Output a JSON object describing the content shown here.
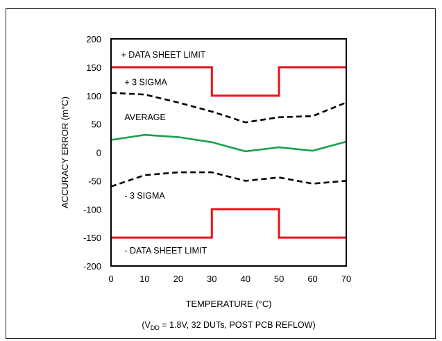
{
  "chart_data": {
    "type": "line",
    "title": "",
    "xlabel": "TEMPERATURE (°C)",
    "ylabel": "ACCURACY ERROR (m°C)",
    "note": {
      "prefix": "(V",
      "subscript": "DD",
      "suffix": " = 1.8V, 32 DUTs, POST PCB REFLOW)"
    },
    "xlim": [
      0,
      70
    ],
    "ylim": [
      -200,
      200
    ],
    "x_ticks": [
      0,
      10,
      20,
      30,
      40,
      50,
      60,
      70
    ],
    "y_ticks": [
      200,
      150,
      100,
      50,
      0,
      -50,
      -100,
      -150,
      -200
    ],
    "grid": false,
    "series": [
      {
        "name": "+ DATA SHEET LIMIT",
        "color": "#e8141b",
        "style": "solid",
        "step": true,
        "points": [
          [
            0,
            150
          ],
          [
            30,
            150
          ],
          [
            30,
            100
          ],
          [
            50,
            100
          ],
          [
            50,
            150
          ],
          [
            70,
            150
          ]
        ]
      },
      {
        "name": "+ 3 SIGMA",
        "color": "#000000",
        "style": "dashed",
        "step": false,
        "points": [
          [
            0,
            105
          ],
          [
            10,
            102
          ],
          [
            20,
            88
          ],
          [
            30,
            72
          ],
          [
            40,
            53
          ],
          [
            50,
            62
          ],
          [
            60,
            64
          ],
          [
            70,
            88
          ]
        ]
      },
      {
        "name": "AVERAGE",
        "color": "#16a44a",
        "style": "solid",
        "step": false,
        "points": [
          [
            0,
            22
          ],
          [
            10,
            31
          ],
          [
            20,
            27
          ],
          [
            30,
            18
          ],
          [
            40,
            2
          ],
          [
            50,
            9
          ],
          [
            60,
            3
          ],
          [
            70,
            19
          ]
        ]
      },
      {
        "name": "- 3 SIGMA",
        "color": "#000000",
        "style": "dashed",
        "step": false,
        "points": [
          [
            0,
            -60
          ],
          [
            10,
            -40
          ],
          [
            20,
            -35
          ],
          [
            30,
            -35
          ],
          [
            40,
            -50
          ],
          [
            50,
            -44
          ],
          [
            60,
            -55
          ],
          [
            70,
            -50
          ]
        ]
      },
      {
        "name": "- DATA SHEET LIMIT",
        "color": "#e8141b",
        "style": "solid",
        "step": true,
        "points": [
          [
            0,
            -150
          ],
          [
            30,
            -150
          ],
          [
            30,
            -100
          ],
          [
            50,
            -100
          ],
          [
            50,
            -150
          ],
          [
            70,
            -150
          ]
        ]
      }
    ],
    "annotations": [
      {
        "text": "+ DATA SHEET LIMIT",
        "x": 3,
        "y": 173
      },
      {
        "text": "+ 3 SIGMA",
        "x": 4,
        "y": 125
      },
      {
        "text": "AVERAGE",
        "x": 4,
        "y": 63
      },
      {
        "text": "- 3 SIGMA",
        "x": 4,
        "y": -75
      },
      {
        "text": "- DATA SHEET LIMIT",
        "x": 4,
        "y": -172
      }
    ]
  }
}
